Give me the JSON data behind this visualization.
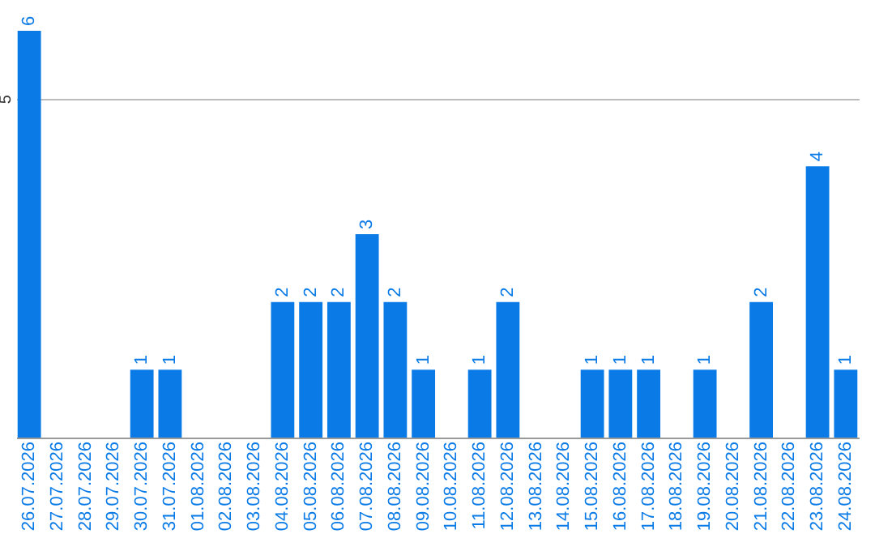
{
  "chart_data": {
    "type": "bar",
    "categories": [
      "26.07.2026",
      "27.07.2026",
      "28.07.2026",
      "29.07.2026",
      "30.07.2026",
      "31.07.2026",
      "01.08.2026",
      "02.08.2026",
      "03.08.2026",
      "04.08.2026",
      "05.08.2026",
      "06.08.2026",
      "07.08.2026",
      "08.08.2026",
      "09.08.2026",
      "10.08.2026",
      "11.08.2026",
      "12.08.2026",
      "13.08.2026",
      "14.08.2026",
      "15.08.2026",
      "16.08.2026",
      "17.08.2026",
      "18.08.2026",
      "19.08.2026",
      "20.08.2026",
      "21.08.2026",
      "22.08.2026",
      "23.08.2026",
      "24.08.2026"
    ],
    "values": [
      6,
      0,
      0,
      0,
      1,
      1,
      0,
      0,
      0,
      2,
      2,
      2,
      3,
      2,
      1,
      0,
      1,
      2,
      0,
      0,
      1,
      1,
      1,
      0,
      1,
      0,
      2,
      0,
      4,
      1
    ],
    "value_labels": [
      "6",
      null,
      null,
      null,
      "1",
      "1",
      null,
      null,
      null,
      "2",
      "2",
      "2",
      "3",
      "2",
      "1",
      null,
      "1",
      "2",
      null,
      null,
      "1",
      "1",
      "1",
      null,
      "1",
      null,
      "2",
      null,
      "4",
      "1"
    ],
    "color": "#0a7be6",
    "ylim": [
      0,
      6
    ],
    "yticks": [
      5
    ],
    "grid": "y"
  }
}
